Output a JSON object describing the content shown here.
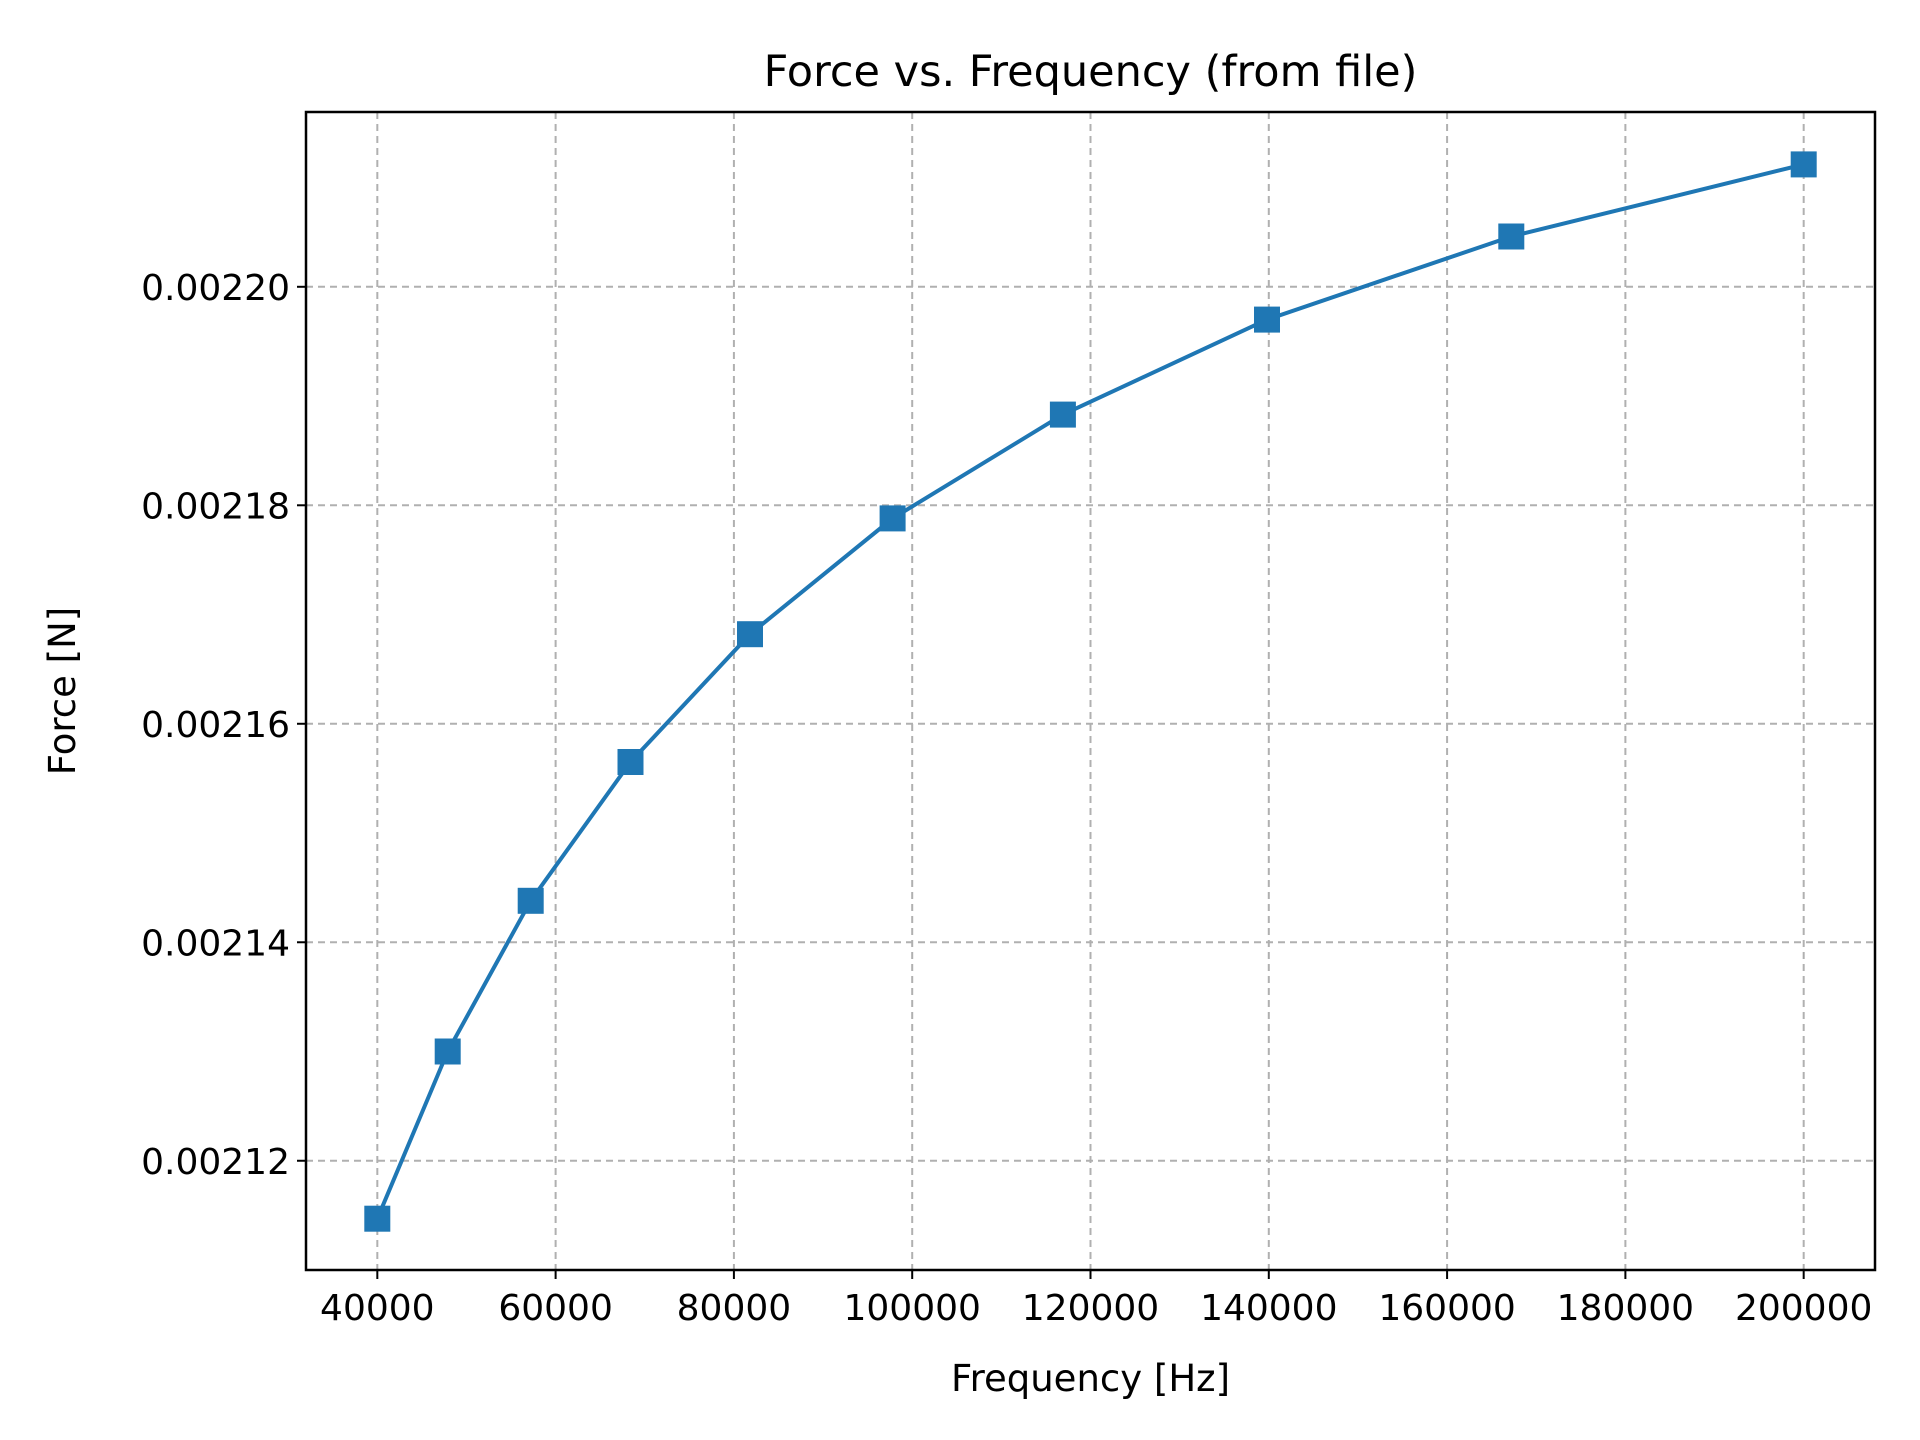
{
  "chart_data": {
    "type": "line",
    "title": "Force vs. Frequency (from file)",
    "xlabel": "Frequency [Hz]",
    "ylabel": "Force [N]",
    "xlim": [
      32000,
      208000
    ],
    "ylim": [
      0.00211,
      0.002216
    ],
    "grid": true,
    "legend": "none",
    "marker": "square",
    "color": "#1f77b4",
    "x_ticks": [
      40000,
      60000,
      80000,
      100000,
      120000,
      140000,
      160000,
      180000,
      200000
    ],
    "x_tick_labels": [
      "40000",
      "60000",
      "80000",
      "100000",
      "120000",
      "140000",
      "160000",
      "180000",
      "200000"
    ],
    "y_ticks": [
      0.00212,
      0.00214,
      0.00216,
      0.00218,
      0.0022
    ],
    "y_tick_labels": [
      "0.00212",
      "0.00214",
      "0.00216",
      "0.00218",
      "0.00220"
    ],
    "series": [
      {
        "x": [
          40000,
          47900,
          57200,
          68400,
          81800,
          97800,
          116900,
          139800,
          167200,
          200000
        ],
        "y": [
          0.0021147,
          0.00213,
          0.0021438,
          0.0021565,
          0.0021682,
          0.0021788,
          0.0021883,
          0.002197,
          0.0022046,
          0.0022112
        ]
      }
    ]
  }
}
